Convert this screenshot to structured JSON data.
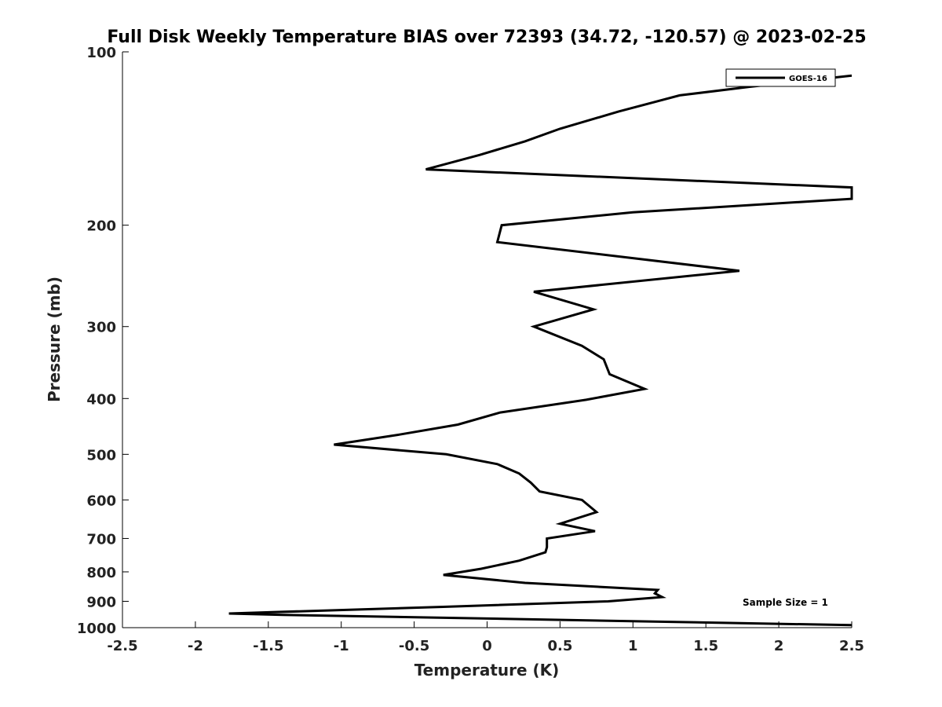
{
  "chart_data": {
    "type": "line",
    "title": "Full Disk Weekly Temperature BIAS over 72393 (34.72, -120.57) @ 2023-02-25",
    "xlabel": "Temperature (K)",
    "ylabel": "Pressure (mb)",
    "xlim": [
      -2.5,
      2.5
    ],
    "ylim": [
      100,
      1000
    ],
    "y_scale": "log",
    "y_reversed": true,
    "x_ticks": [
      -2.5,
      -2,
      -1.5,
      -1,
      -0.5,
      0,
      0.5,
      1,
      1.5,
      2,
      2.5
    ],
    "x_tick_labels": [
      "-2.5",
      "-2",
      "-1.5",
      "-1",
      "-0.5",
      "0",
      "0.5",
      "1",
      "1.5",
      "2",
      "2.5"
    ],
    "y_ticks": [
      100,
      200,
      300,
      400,
      500,
      600,
      700,
      800,
      900,
      1000
    ],
    "y_tick_labels": [
      "100",
      "200",
      "300",
      "400",
      "500",
      "600",
      "700",
      "800",
      "900",
      "1000"
    ],
    "grid": false,
    "legend_position": "top-right",
    "annotation": "Sample Size = 1",
    "series": [
      {
        "name": "GOES-16",
        "color": "#000000",
        "points": [
          [
            2.5,
            110
          ],
          [
            1.8,
            115
          ],
          [
            1.32,
            119
          ],
          [
            0.9,
            127
          ],
          [
            0.5,
            136
          ],
          [
            0.26,
            143
          ],
          [
            -0.05,
            151
          ],
          [
            -0.42,
            160
          ],
          [
            2.5,
            172
          ],
          [
            2.5,
            180
          ],
          [
            1.0,
            190
          ],
          [
            0.1,
            200
          ],
          [
            0.07,
            214
          ],
          [
            1.73,
            240
          ],
          [
            0.32,
            261
          ],
          [
            0.73,
            280
          ],
          [
            0.32,
            300
          ],
          [
            0.65,
            324
          ],
          [
            0.8,
            342
          ],
          [
            0.84,
            363
          ],
          [
            1.08,
            385
          ],
          [
            0.68,
            402
          ],
          [
            0.09,
            423
          ],
          [
            -0.2,
            444
          ],
          [
            -0.6,
            462
          ],
          [
            -1.05,
            481
          ],
          [
            -0.28,
            500
          ],
          [
            0.07,
            520
          ],
          [
            0.22,
            540
          ],
          [
            0.3,
            560
          ],
          [
            0.36,
            580
          ],
          [
            0.65,
            600
          ],
          [
            0.75,
            630
          ],
          [
            0.5,
            660
          ],
          [
            0.74,
            680
          ],
          [
            0.41,
            700
          ],
          [
            0.41,
            725
          ],
          [
            0.4,
            740
          ],
          [
            0.22,
            765
          ],
          [
            -0.04,
            790
          ],
          [
            -0.3,
            810
          ],
          [
            0.26,
            836
          ],
          [
            1.17,
            860
          ],
          [
            1.15,
            872
          ],
          [
            1.2,
            885
          ],
          [
            0.83,
            900
          ],
          [
            -0.3,
            920
          ],
          [
            -1.77,
            945
          ],
          [
            -1.4,
            950
          ],
          [
            2.5,
            990
          ]
        ]
      }
    ]
  }
}
